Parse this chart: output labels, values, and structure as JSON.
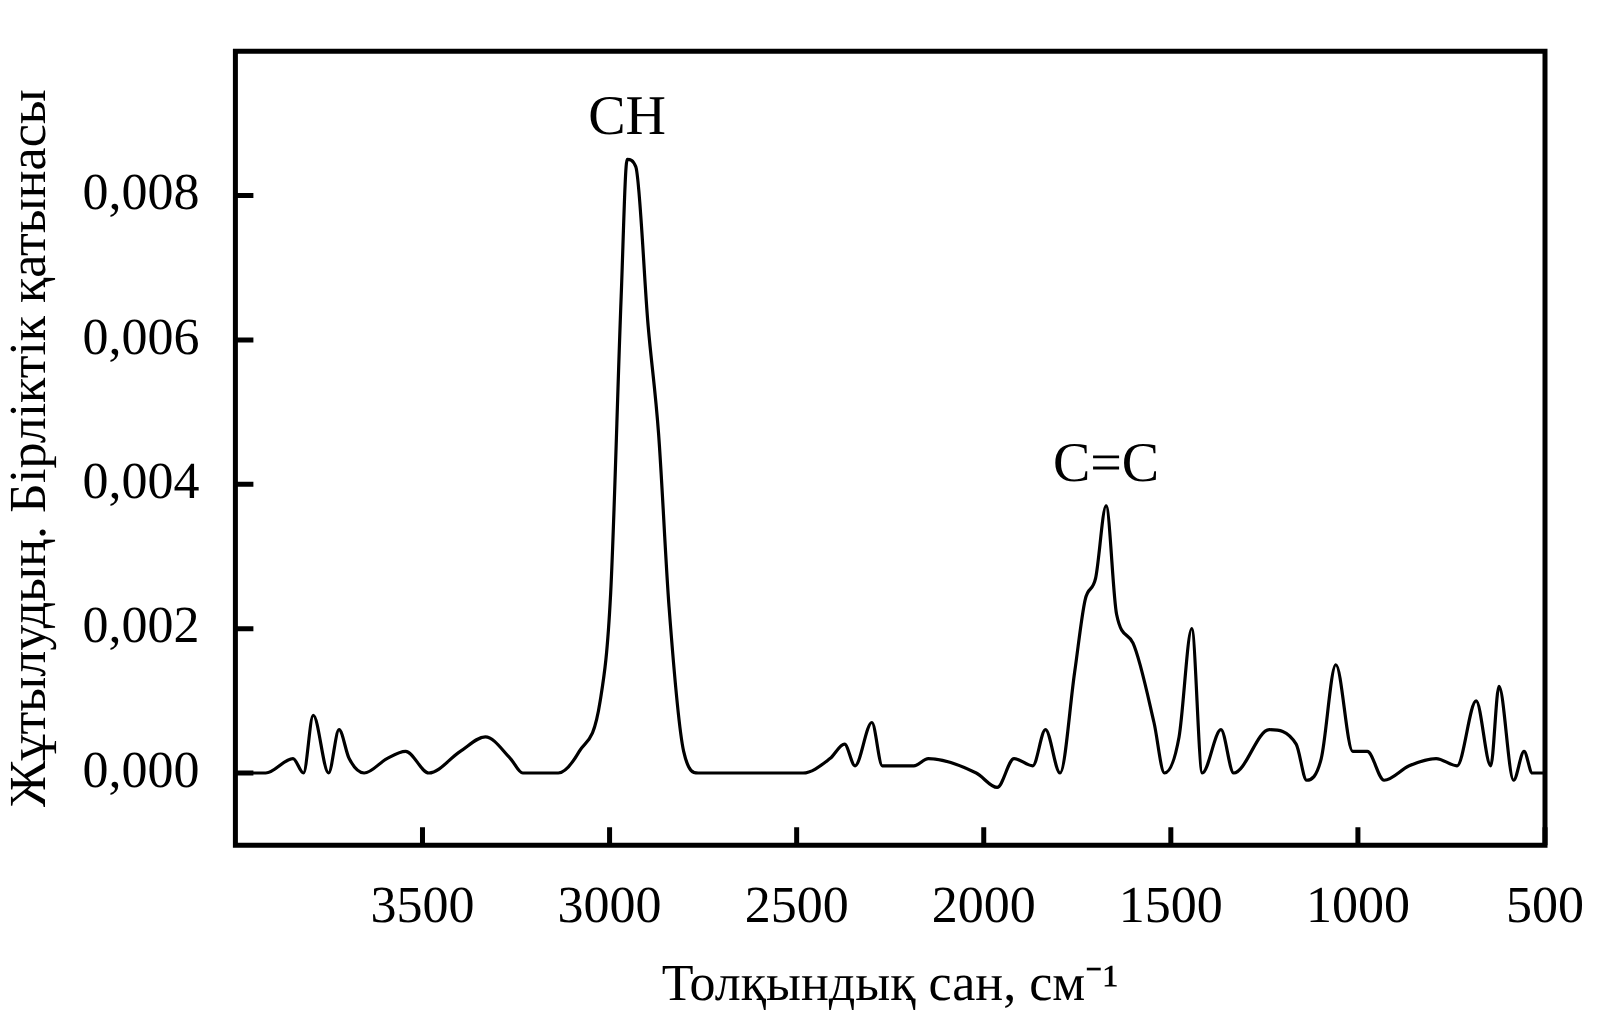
{
  "chart_data": {
    "type": "line",
    "xlabel": "Толқындық сан, см⁻¹",
    "ylabel": "Жұтылудың. Бірліктік қатынасы",
    "color": "#000000",
    "x": [
      4000,
      3919,
      3846,
      3818,
      3792,
      3751,
      3723,
      3696,
      3656,
      3595,
      3545,
      3483,
      3399,
      3332,
      3265,
      3232,
      3137,
      3081,
      3025,
      2997,
      2969,
      2953,
      2930,
      2897,
      2869,
      2841,
      2802,
      2763,
      2617,
      2483,
      2411,
      2372,
      2344,
      2299,
      2271,
      2187,
      2148,
      2020,
      1964,
      1919,
      1869,
      1835,
      1796,
      1757,
      1729,
      1701,
      1673,
      1645,
      1601,
      1545,
      1517,
      1478,
      1444,
      1416,
      1366,
      1332,
      1237,
      1165,
      1137,
      1098,
      1059,
      1014,
      975,
      930,
      863,
      791,
      735,
      684,
      645,
      623,
      584,
      556,
      534,
      500
    ],
    "values": [
      0.0,
      0.0,
      0.0002,
      0.0,
      0.0008,
      0.0,
      0.0006,
      0.0002,
      0.0,
      0.0002,
      0.0003,
      0.0,
      0.0003,
      0.0005,
      0.0002,
      0.0,
      0.0,
      0.0003,
      0.001,
      0.0025,
      0.0066,
      0.0085,
      0.0084,
      0.0062,
      0.0047,
      0.0023,
      0.0003,
      0.0,
      0.0,
      0.0,
      0.0002,
      0.0004,
      0.0001,
      0.0007,
      0.0001,
      0.0001,
      0.0002,
      0.0,
      -0.0002,
      0.0002,
      0.0001,
      0.0006,
      0.0,
      0.0014,
      0.0024,
      0.0027,
      0.0037,
      0.0022,
      0.0018,
      0.0007,
      0.0,
      0.0005,
      0.002,
      0.0,
      0.0006,
      0.0,
      0.0006,
      0.0004,
      -0.0001,
      0.0002,
      0.0015,
      0.0003,
      0.0003,
      -0.0001,
      0.0001,
      0.0002,
      0.0001,
      0.001,
      0.0001,
      0.0012,
      -0.0001,
      0.0003,
      0.0,
      0.0
    ],
    "xlim": [
      4000,
      500
    ],
    "xticks": [
      3500,
      3000,
      2500,
      2000,
      1500,
      1000,
      500
    ],
    "ylim": [
      -0.001,
      0.01
    ],
    "yticks": [
      {
        "value": 0,
        "label": "0,000"
      },
      {
        "value": 0.002,
        "label": "0,002"
      },
      {
        "value": 0.004,
        "label": "0,004"
      },
      {
        "value": 0.006,
        "label": "0,006"
      },
      {
        "value": 0.008,
        "label": "0,008"
      }
    ],
    "annotations": [
      {
        "text": "CH",
        "x": 2953,
        "y": 0.0085
      },
      {
        "text": "C=C",
        "x": 1673,
        "y": 0.0037
      }
    ]
  }
}
